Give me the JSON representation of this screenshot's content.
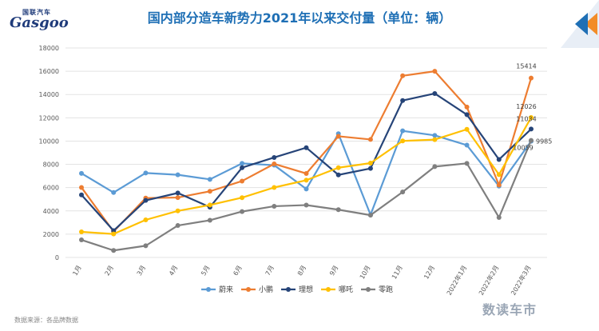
{
  "logo": {
    "top": "国联汽车",
    "main": "Gasgoo",
    "sub": ""
  },
  "title": "国内部分造车新势力2021年以来交付量（单位：辆）",
  "source": "数据来源：各品牌数据",
  "watermark": "数读车市",
  "chart_data": {
    "type": "line",
    "categories": [
      "1月",
      "2月",
      "3月",
      "4月",
      "5月",
      "6月",
      "7月",
      "8月",
      "9月",
      "10月",
      "11月",
      "12月",
      "2022年1月",
      "2022年2月",
      "2022年3月"
    ],
    "ylim": [
      0,
      18000
    ],
    "yticks": [
      0,
      2000,
      4000,
      6000,
      8000,
      10000,
      12000,
      14000,
      16000,
      18000
    ],
    "grid": true,
    "legend_position": "bottom",
    "series": [
      {
        "name": "蔚来",
        "color": "#5b9bd5",
        "values": [
          7225,
          5578,
          7257,
          7102,
          6711,
          8083,
          7931,
          5880,
          10628,
          3667,
          10878,
          10489,
          9652,
          6131,
          9985
        ]
      },
      {
        "name": "小鹏",
        "color": "#ed7d31",
        "values": [
          6015,
          2223,
          5102,
          5147,
          5686,
          6565,
          8040,
          7214,
          10412,
          10138,
          15613,
          16000,
          12922,
          6225,
          15414
        ]
      },
      {
        "name": "理想",
        "color": "#264478",
        "values": [
          5379,
          2300,
          4900,
          5539,
          4323,
          7713,
          8589,
          9433,
          7094,
          7649,
          13485,
          14087,
          12268,
          8414,
          11034
        ]
      },
      {
        "name": "哪吒",
        "color": "#ffc000",
        "values": [
          2200,
          2015,
          3229,
          4000,
          4508,
          5138,
          6011,
          6636,
          7712,
          8107,
          10013,
          10127,
          11009,
          7117,
          12026
        ]
      },
      {
        "name": "零跑",
        "color": "#7f7f7f",
        "values": [
          1509,
          600,
          1005,
          2744,
          3195,
          3942,
          4400,
          4500,
          4106,
          3632,
          5628,
          7807,
          8085,
          3435,
          10059
        ]
      }
    ],
    "data_labels": [
      {
        "series": "小鹏",
        "index": 14,
        "text": "15414"
      },
      {
        "series": "哪吒",
        "index": 14,
        "text": "12026"
      },
      {
        "series": "理想",
        "index": 14,
        "text": "11034"
      },
      {
        "series": "蔚来",
        "index": 14,
        "text": "9985"
      },
      {
        "series": "零跑",
        "index": 14,
        "text": "10059"
      }
    ]
  }
}
